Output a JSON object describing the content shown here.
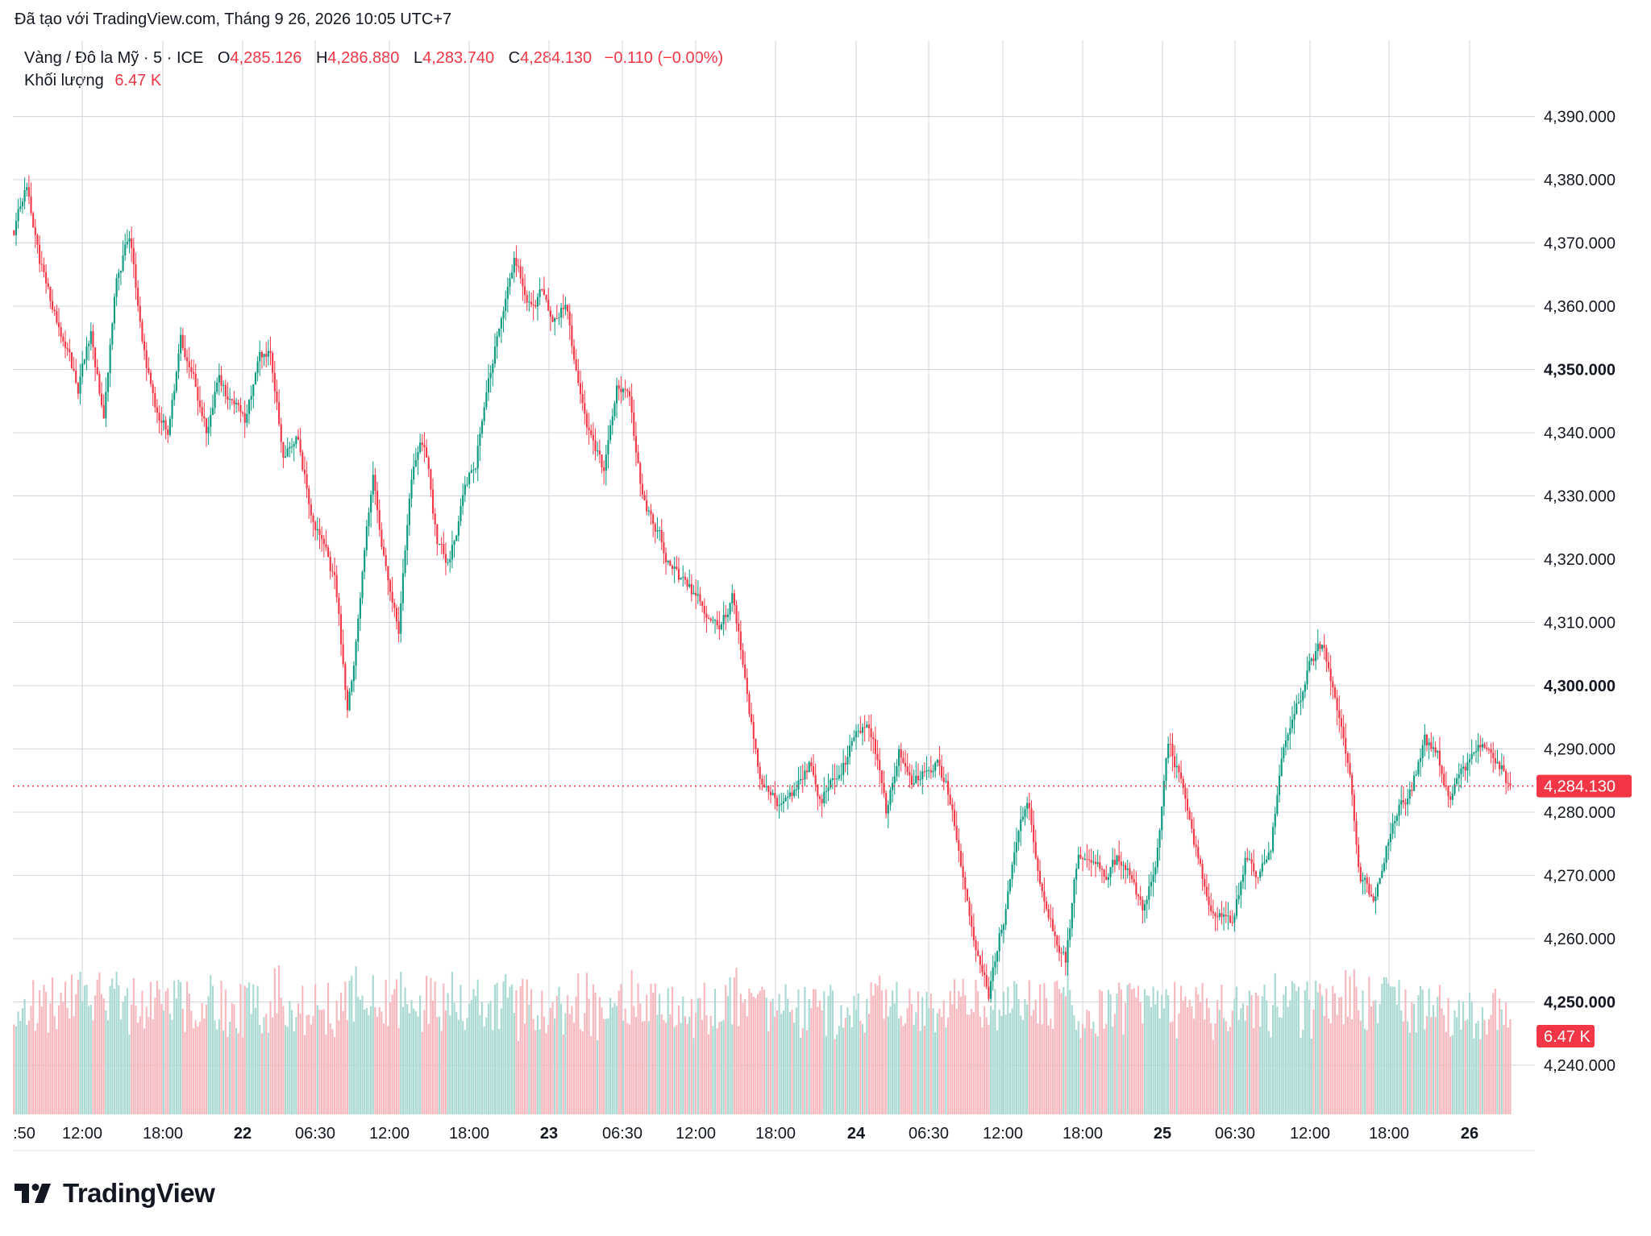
{
  "caption": "Đã tạo với TradingView.com, Tháng 9 26, 2026 10:05 UTC+7",
  "legend": {
    "symbol": "Vàng / Đô la Mỹ · 5 · ICE",
    "o_label": "O",
    "o_value": "4,285.126",
    "h_label": "H",
    "h_value": "4,286.880",
    "l_label": "L",
    "l_value": "4,283.740",
    "c_label": "C",
    "c_value": "4,284.130",
    "change": "−0.110 (−0.00%)",
    "volume_label": "Khối lượng",
    "volume_value": "6.47 K"
  },
  "price_tag": "4,284.130",
  "volume_tag": "6.47 K",
  "brand": "TradingView",
  "colors": {
    "up": "#089981",
    "down": "#f23645",
    "grid": "#d1d4dc",
    "volume_up": "#a8d9d2",
    "volume_down": "#f7b7bd"
  },
  "chart_data": {
    "type": "candlestick",
    "ylim": [
      4232,
      4398
    ],
    "y_ticks": [
      4240,
      4250,
      4260,
      4270,
      4280,
      4290,
      4300,
      4310,
      4320,
      4330,
      4340,
      4350,
      4360,
      4370,
      4380,
      4390
    ],
    "y_tick_labels": [
      "4,240.000",
      "4,250.000",
      "4,260.000",
      "4,270.000",
      "4,280.000",
      "4,290.000",
      "4,300.000",
      "4,310.000",
      "4,320.000",
      "4,330.000",
      "4,340.000",
      "4,350.000",
      "4,360.000",
      "4,370.000",
      "4,380.000",
      "4,390.000"
    ],
    "y_bold_ticks": [
      4250,
      4300,
      4350
    ],
    "x_labels": [
      ":50",
      "12:00",
      "18:00",
      "22",
      "06:30",
      "12:00",
      "18:00",
      "23",
      "06:30",
      "12:00",
      "18:00",
      "24",
      "06:30",
      "12:00",
      "18:00",
      "25",
      "06:30",
      "12:00",
      "18:00",
      "26"
    ],
    "x_bold_labels": [
      "22",
      "23",
      "24",
      "25",
      "26"
    ],
    "last_price": 4284.13,
    "path": [
      [
        0,
        4372
      ],
      [
        6,
        4378
      ],
      [
        12,
        4366
      ],
      [
        18,
        4360
      ],
      [
        24,
        4352
      ],
      [
        30,
        4346
      ],
      [
        36,
        4356
      ],
      [
        42,
        4342
      ],
      [
        48,
        4365
      ],
      [
        54,
        4372
      ],
      [
        60,
        4356
      ],
      [
        66,
        4344
      ],
      [
        72,
        4340
      ],
      [
        78,
        4354
      ],
      [
        84,
        4348
      ],
      [
        90,
        4340
      ],
      [
        96,
        4350
      ],
      [
        102,
        4344
      ],
      [
        108,
        4342
      ],
      [
        114,
        4352
      ],
      [
        120,
        4354
      ],
      [
        126,
        4338
      ],
      [
        132,
        4340
      ],
      [
        138,
        4330
      ],
      [
        144,
        4324
      ],
      [
        150,
        4316
      ],
      [
        156,
        4296
      ],
      [
        162,
        4312
      ],
      [
        168,
        4334
      ],
      [
        174,
        4318
      ],
      [
        180,
        4310
      ],
      [
        186,
        4334
      ],
      [
        192,
        4338
      ],
      [
        198,
        4322
      ],
      [
        204,
        4320
      ],
      [
        210,
        4330
      ],
      [
        216,
        4336
      ],
      [
        222,
        4350
      ],
      [
        228,
        4358
      ],
      [
        234,
        4368
      ],
      [
        240,
        4362
      ],
      [
        246,
        4364
      ],
      [
        252,
        4358
      ],
      [
        258,
        4360
      ],
      [
        264,
        4348
      ],
      [
        270,
        4340
      ],
      [
        276,
        4334
      ],
      [
        282,
        4346
      ],
      [
        288,
        4346
      ],
      [
        294,
        4330
      ],
      [
        300,
        4326
      ],
      [
        306,
        4320
      ],
      [
        312,
        4316
      ],
      [
        318,
        4314
      ],
      [
        324,
        4312
      ],
      [
        330,
        4310
      ],
      [
        336,
        4314
      ],
      [
        342,
        4302
      ],
      [
        348,
        4288
      ],
      [
        354,
        4282
      ],
      [
        360,
        4280
      ],
      [
        366,
        4284
      ],
      [
        372,
        4288
      ],
      [
        378,
        4282
      ],
      [
        384,
        4286
      ],
      [
        390,
        4290
      ],
      [
        396,
        4294
      ],
      [
        402,
        4292
      ],
      [
        408,
        4280
      ],
      [
        414,
        4290
      ],
      [
        420,
        4284
      ],
      [
        426,
        4286
      ],
      [
        432,
        4288
      ],
      [
        438,
        4282
      ],
      [
        444,
        4270
      ],
      [
        450,
        4258
      ],
      [
        456,
        4252
      ],
      [
        462,
        4262
      ],
      [
        468,
        4272
      ],
      [
        474,
        4282
      ],
      [
        480,
        4270
      ],
      [
        486,
        4262
      ],
      [
        492,
        4256
      ],
      [
        498,
        4274
      ],
      [
        504,
        4270
      ],
      [
        510,
        4268
      ],
      [
        516,
        4272
      ],
      [
        522,
        4270
      ],
      [
        528,
        4264
      ],
      [
        534,
        4272
      ],
      [
        540,
        4290
      ],
      [
        546,
        4286
      ],
      [
        552,
        4276
      ],
      [
        558,
        4268
      ],
      [
        564,
        4264
      ],
      [
        570,
        4262
      ],
      [
        576,
        4272
      ],
      [
        582,
        4270
      ],
      [
        588,
        4276
      ],
      [
        594,
        4290
      ],
      [
        600,
        4296
      ],
      [
        606,
        4304
      ],
      [
        612,
        4306
      ],
      [
        618,
        4300
      ],
      [
        624,
        4288
      ],
      [
        630,
        4270
      ],
      [
        636,
        4266
      ],
      [
        642,
        4276
      ],
      [
        648,
        4282
      ],
      [
        654,
        4284
      ],
      [
        660,
        4292
      ],
      [
        666,
        4288
      ],
      [
        672,
        4282
      ],
      [
        678,
        4288
      ],
      [
        684,
        4290
      ],
      [
        690,
        4290
      ],
      [
        696,
        4288
      ],
      [
        700,
        4284
      ]
    ],
    "seed": 20260926
  }
}
